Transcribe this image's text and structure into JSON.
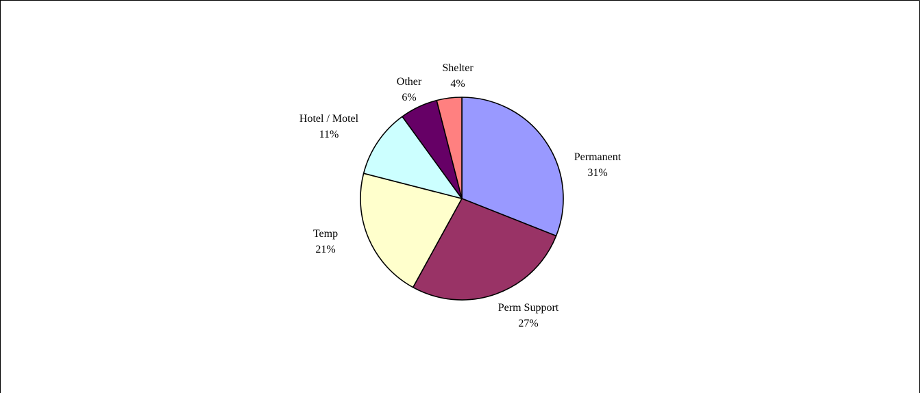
{
  "chart_data": {
    "type": "pie",
    "title": "",
    "slices": [
      {
        "label": "Permanent",
        "percent_label": "31%",
        "value": 31,
        "color": "#9999FF"
      },
      {
        "label": "Perm Support",
        "percent_label": "27%",
        "value": 27,
        "color": "#993366"
      },
      {
        "label": "Temp",
        "percent_label": "21%",
        "value": 21,
        "color": "#FFFFCC"
      },
      {
        "label": "Hotel / Motel",
        "percent_label": "11%",
        "value": 11,
        "color": "#CCFFFF"
      },
      {
        "label": "Other",
        "percent_label": "6%",
        "value": 6,
        "color": "#660066"
      },
      {
        "label": "Shelter",
        "percent_label": "4%",
        "value": 4,
        "color": "#FF8080"
      }
    ],
    "start": "12 o'clock",
    "direction": "clockwise",
    "legend": "none",
    "data_labels": "category name and percent outside slices"
  }
}
